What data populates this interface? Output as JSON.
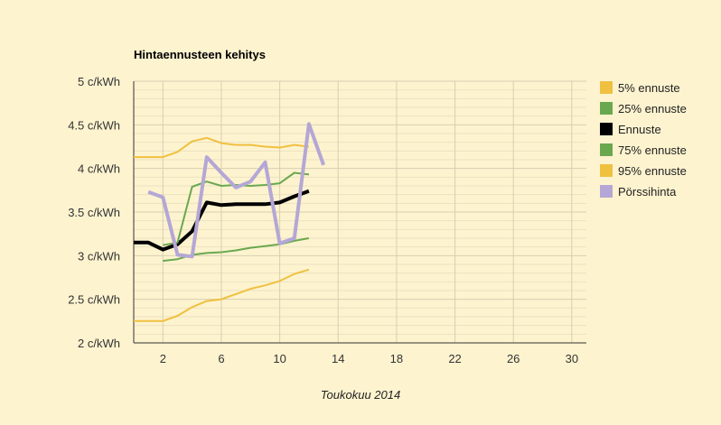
{
  "chart_data": {
    "type": "line",
    "title": "Hintaennusteen kehitys",
    "xlabel": "Toukokuu 2014",
    "ylabel": "",
    "xlim": [
      0,
      31
    ],
    "ylim": [
      2,
      5
    ],
    "x_ticks": [
      2,
      6,
      10,
      14,
      18,
      22,
      26,
      30
    ],
    "y_ticks": [
      {
        "value": 2,
        "label": "2 c/kWh"
      },
      {
        "value": 2.5,
        "label": "2.5 c/kWh"
      },
      {
        "value": 3,
        "label": "3 c/kWh"
      },
      {
        "value": 3.5,
        "label": "3.5 c/kWh"
      },
      {
        "value": 4,
        "label": "4 c/kWh"
      },
      {
        "value": 4.5,
        "label": "4.5 c/kWh"
      },
      {
        "value": 5,
        "label": "5 c/kWh"
      }
    ],
    "grid": true,
    "legend_position": "right",
    "series": [
      {
        "name": "5% ennuste",
        "color": "#f0c040",
        "width": 2,
        "points": [
          [
            0,
            2.25
          ],
          [
            1,
            2.25
          ],
          [
            2,
            2.25
          ],
          [
            3,
            2.31
          ],
          [
            4,
            2.41
          ],
          [
            5,
            2.48
          ],
          [
            6,
            2.5
          ],
          [
            7,
            2.56
          ],
          [
            8,
            2.62
          ],
          [
            9,
            2.66
          ],
          [
            10,
            2.71
          ],
          [
            11,
            2.79
          ],
          [
            12,
            2.84
          ]
        ]
      },
      {
        "name": "25% ennuste",
        "color": "#6aa84f",
        "width": 2,
        "points": [
          [
            2,
            2.94
          ],
          [
            3,
            2.96
          ],
          [
            4,
            3.01
          ],
          [
            5,
            3.03
          ],
          [
            6,
            3.04
          ],
          [
            7,
            3.06
          ],
          [
            8,
            3.09
          ],
          [
            9,
            3.11
          ],
          [
            10,
            3.13
          ],
          [
            11,
            3.17
          ],
          [
            12,
            3.2
          ]
        ]
      },
      {
        "name": "Ennuste",
        "color": "#000000",
        "width": 4,
        "points": [
          [
            0,
            3.15
          ],
          [
            1,
            3.15
          ],
          [
            2,
            3.07
          ],
          [
            3,
            3.13
          ],
          [
            4,
            3.28
          ],
          [
            5,
            3.61
          ],
          [
            6,
            3.58
          ],
          [
            7,
            3.59
          ],
          [
            8,
            3.59
          ],
          [
            9,
            3.59
          ],
          [
            10,
            3.61
          ],
          [
            11,
            3.68
          ],
          [
            12,
            3.74
          ]
        ]
      },
      {
        "name": "75% ennuste",
        "color": "#6aa84f",
        "width": 2,
        "points": [
          [
            2,
            3.12
          ],
          [
            3,
            3.15
          ],
          [
            4,
            3.79
          ],
          [
            5,
            3.85
          ],
          [
            6,
            3.8
          ],
          [
            7,
            3.81
          ],
          [
            8,
            3.8
          ],
          [
            9,
            3.81
          ],
          [
            10,
            3.83
          ],
          [
            11,
            3.95
          ],
          [
            12,
            3.93
          ]
        ]
      },
      {
        "name": "95% ennuste",
        "color": "#f0c040",
        "width": 2,
        "points": [
          [
            0,
            4.13
          ],
          [
            1,
            4.13
          ],
          [
            2,
            4.13
          ],
          [
            3,
            4.19
          ],
          [
            4,
            4.31
          ],
          [
            5,
            4.35
          ],
          [
            6,
            4.29
          ],
          [
            7,
            4.27
          ],
          [
            8,
            4.27
          ],
          [
            9,
            4.25
          ],
          [
            10,
            4.24
          ],
          [
            11,
            4.27
          ],
          [
            12,
            4.25
          ]
        ]
      },
      {
        "name": "Pörssihinta",
        "color": "#b4a7d6",
        "width": 4,
        "points": [
          [
            1,
            3.73
          ],
          [
            2,
            3.67
          ],
          [
            3,
            3.01
          ],
          [
            4,
            2.99
          ],
          [
            5,
            4.13
          ],
          [
            6,
            3.95
          ],
          [
            7,
            3.78
          ],
          [
            8,
            3.85
          ],
          [
            9,
            4.07
          ],
          [
            10,
            3.14
          ],
          [
            11,
            3.2
          ],
          [
            12,
            4.51
          ],
          [
            13,
            4.04
          ]
        ]
      }
    ]
  }
}
